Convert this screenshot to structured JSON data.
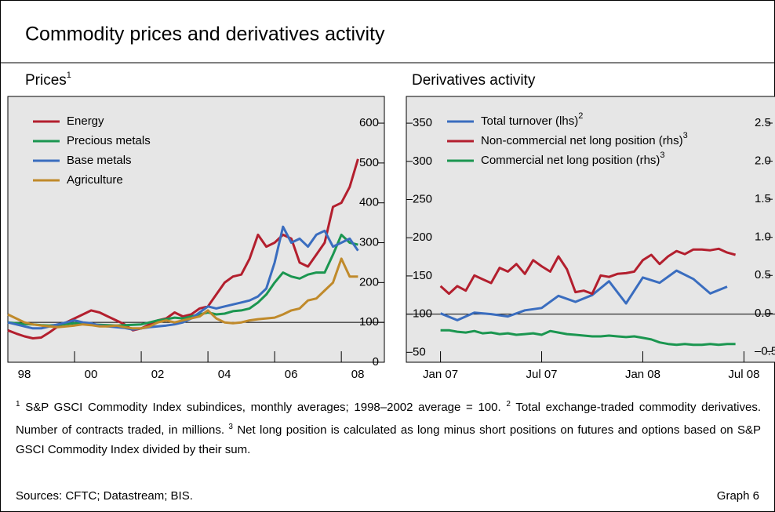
{
  "title": "Commodity prices and derivatives activity",
  "chart_data": [
    {
      "type": "line",
      "title": "Prices",
      "title_note": "1",
      "xlim": [
        1998,
        2009.29
      ],
      "ylim": [
        0,
        667
      ],
      "xticks": [
        {
          "value": 1998,
          "label": "98"
        },
        {
          "value": 2000,
          "label": "00"
        },
        {
          "value": 2002,
          "label": "02"
        },
        {
          "value": 2004,
          "label": "04"
        },
        {
          "value": 2006,
          "label": "06"
        },
        {
          "value": 2008,
          "label": "08"
        }
      ],
      "yticks": [
        0,
        100,
        200,
        300,
        400,
        500,
        600
      ],
      "baseline": 100,
      "x": [
        1998,
        1998.25,
        1998.5,
        1998.75,
        1999,
        1999.25,
        1999.5,
        1999.75,
        2000,
        2000.25,
        2000.5,
        2000.75,
        2001,
        2001.25,
        2001.5,
        2001.75,
        2002,
        2002.25,
        2002.5,
        2002.75,
        2003,
        2003.25,
        2003.5,
        2003.75,
        2004,
        2004.25,
        2004.5,
        2004.75,
        2005,
        2005.25,
        2005.5,
        2005.75,
        2006,
        2006.25,
        2006.5,
        2006.75,
        2007,
        2007.25,
        2007.5,
        2007.75,
        2008,
        2008.25,
        2008.5
      ],
      "series": [
        {
          "name": "Energy",
          "color": "#b31f2e",
          "values": [
            80,
            72,
            65,
            60,
            62,
            75,
            90,
            100,
            110,
            120,
            130,
            125,
            115,
            105,
            95,
            80,
            85,
            95,
            105,
            110,
            125,
            115,
            120,
            135,
            140,
            170,
            200,
            215,
            220,
            260,
            320,
            290,
            300,
            320,
            310,
            250,
            240,
            270,
            300,
            390,
            400,
            440,
            510
          ]
        },
        {
          "name": "Precious metals",
          "color": "#1b9650",
          "values": [
            100,
            98,
            96,
            95,
            93,
            92,
            94,
            96,
            98,
            97,
            95,
            94,
            93,
            92,
            93,
            94,
            95,
            100,
            105,
            108,
            112,
            110,
            115,
            120,
            125,
            120,
            122,
            128,
            130,
            135,
            150,
            170,
            200,
            225,
            215,
            210,
            220,
            225,
            225,
            270,
            320,
            300,
            295
          ]
        },
        {
          "name": "Base metals",
          "color": "#3a6dbf",
          "values": [
            100,
            95,
            90,
            85,
            85,
            90,
            95,
            100,
            105,
            100,
            98,
            92,
            90,
            88,
            86,
            82,
            85,
            88,
            90,
            92,
            95,
            100,
            110,
            125,
            140,
            135,
            140,
            145,
            150,
            155,
            165,
            185,
            250,
            340,
            300,
            310,
            290,
            320,
            330,
            290,
            300,
            310,
            280
          ]
        },
        {
          "name": "Agriculture",
          "color": "#c08a2b",
          "values": [
            120,
            110,
            100,
            95,
            92,
            90,
            88,
            90,
            92,
            95,
            93,
            90,
            90,
            92,
            88,
            85,
            85,
            90,
            100,
            105,
            100,
            105,
            110,
            115,
            130,
            110,
            100,
            98,
            100,
            105,
            108,
            110,
            112,
            120,
            130,
            135,
            155,
            160,
            180,
            200,
            260,
            215,
            215
          ]
        }
      ]
    },
    {
      "type": "line",
      "title": "Derivatives activity",
      "xlim": [
        2006.831,
        2008.7
      ],
      "ylim": [
        37,
        385
      ],
      "y2lim": [
        -0.64,
        2.85
      ],
      "xticks": [
        {
          "value": 2007,
          "label": "Jan 07"
        },
        {
          "value": 2007.5,
          "label": "Jul 07"
        },
        {
          "value": 2008,
          "label": "Jan 08"
        },
        {
          "value": 2008.5,
          "label": "Jul 08"
        }
      ],
      "yticks": [
        50,
        100,
        150,
        200,
        250,
        300,
        350
      ],
      "y2ticks": [
        {
          "value": -0.5,
          "label": "–0.5"
        },
        {
          "value": 0,
          "label": "0.0"
        },
        {
          "value": 0.5,
          "label": "0.5"
        },
        {
          "value": 1,
          "label": "1.0"
        },
        {
          "value": 1.5,
          "label": "1.5"
        },
        {
          "value": 2,
          "label": "2.0"
        },
        {
          "value": 2.5,
          "label": "2.5"
        }
      ],
      "baseline": 100,
      "series": [
        {
          "name": "Total turnover (lhs)",
          "note": "2",
          "color": "#3a6dbf",
          "x": [
            2007,
            2007.083,
            2007.167,
            2007.25,
            2007.333,
            2007.417,
            2007.5,
            2007.583,
            2007.667,
            2007.75,
            2007.833,
            2007.917,
            2008,
            2008.083,
            2008.167,
            2008.25,
            2008.333,
            2008.417
          ],
          "values": [
            101,
            92,
            102,
            100,
            97,
            105,
            108,
            124,
            116,
            125,
            143,
            114,
            148,
            141,
            157,
            146,
            127,
            136
          ]
        },
        {
          "name": "Non-commercial net long position (rhs)",
          "note": "3",
          "color": "#b31f2e",
          "axis": "y2",
          "x": [
            2007,
            2007.042,
            2007.083,
            2007.125,
            2007.167,
            2007.208,
            2007.25,
            2007.292,
            2007.333,
            2007.375,
            2007.417,
            2007.458,
            2007.5,
            2007.542,
            2007.583,
            2007.625,
            2007.667,
            2007.708,
            2007.75,
            2007.792,
            2007.833,
            2007.875,
            2007.917,
            2007.958,
            2008,
            2008.042,
            2008.083,
            2008.125,
            2008.167,
            2008.208,
            2008.25,
            2008.292,
            2008.333,
            2008.375,
            2008.417,
            2008.458
          ],
          "values": [
            0.36,
            0.26,
            0.36,
            0.3,
            0.5,
            0.45,
            0.4,
            0.6,
            0.55,
            0.65,
            0.52,
            0.7,
            0.62,
            0.55,
            0.75,
            0.58,
            0.28,
            0.3,
            0.26,
            0.5,
            0.48,
            0.52,
            0.53,
            0.55,
            0.7,
            0.77,
            0.65,
            0.75,
            0.82,
            0.78,
            0.84,
            0.84,
            0.83,
            0.85,
            0.8,
            0.77
          ]
        },
        {
          "name": "Commercial net long position (rhs)",
          "note": "3",
          "color": "#1b9650",
          "axis": "y2",
          "x": [
            2007,
            2007.042,
            2007.083,
            2007.125,
            2007.167,
            2007.208,
            2007.25,
            2007.292,
            2007.333,
            2007.375,
            2007.417,
            2007.458,
            2007.5,
            2007.542,
            2007.583,
            2007.625,
            2007.667,
            2007.708,
            2007.75,
            2007.792,
            2007.833,
            2007.875,
            2007.917,
            2007.958,
            2008,
            2008.042,
            2008.083,
            2008.125,
            2008.167,
            2008.208,
            2008.25,
            2008.292,
            2008.333,
            2008.375,
            2008.417,
            2008.458
          ],
          "values": [
            -0.22,
            -0.22,
            -0.24,
            -0.25,
            -0.23,
            -0.26,
            -0.25,
            -0.27,
            -0.26,
            -0.28,
            -0.27,
            -0.26,
            -0.28,
            -0.23,
            -0.25,
            -0.27,
            -0.28,
            -0.29,
            -0.3,
            -0.3,
            -0.29,
            -0.3,
            -0.31,
            -0.3,
            -0.32,
            -0.34,
            -0.38,
            -0.4,
            -0.41,
            -0.4,
            -0.41,
            -0.41,
            -0.4,
            -0.41,
            -0.4,
            -0.4
          ]
        }
      ]
    }
  ],
  "footnotes": [
    {
      "marker": "1",
      "text": "S&P GSCI Commodity Index subindices, monthly averages; 1998–2002 average = 100."
    },
    {
      "marker": "2",
      "text": "Total exchange-traded commodity derivatives. Number of contracts traded, in millions."
    },
    {
      "marker": "3",
      "text": "Net long position is calculated as long minus short positions on futures and options based on S&P GSCI Commodity Index divided by their sum."
    }
  ],
  "sources": "Sources: CFTC; Datastream; BIS.",
  "graph_label": "Graph 6"
}
